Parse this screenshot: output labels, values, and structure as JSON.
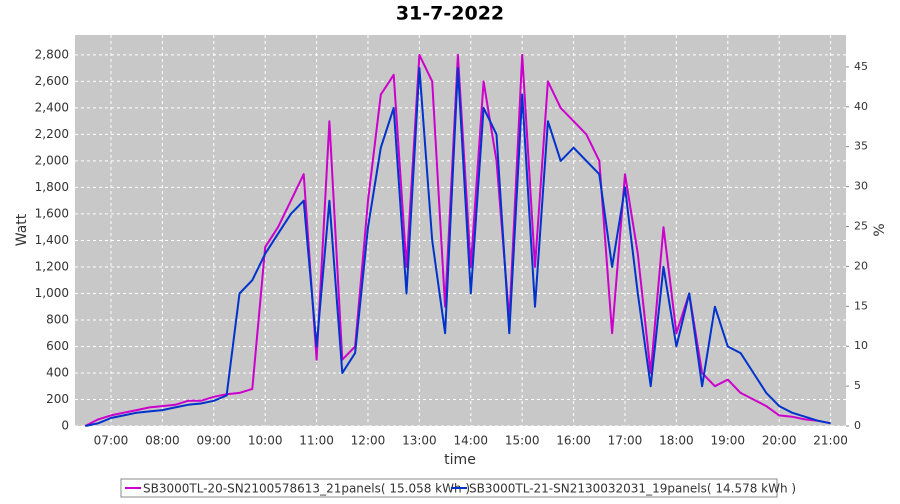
{
  "chart_data": {
    "type": "line",
    "title": "31-7-2022",
    "x_label": "time",
    "y_label": "Watt",
    "y2_label": "%",
    "x": [
      "06:30",
      "06:45",
      "07:00",
      "07:15",
      "07:30",
      "07:45",
      "08:00",
      "08:15",
      "08:30",
      "08:45",
      "09:00",
      "09:15",
      "09:30",
      "09:45",
      "10:00",
      "10:15",
      "10:30",
      "10:45",
      "11:00",
      "11:15",
      "11:30",
      "11:45",
      "12:00",
      "12:15",
      "12:30",
      "12:45",
      "13:00",
      "13:15",
      "13:30",
      "13:45",
      "14:00",
      "14:15",
      "14:30",
      "14:45",
      "15:00",
      "15:15",
      "15:30",
      "15:45",
      "16:00",
      "16:15",
      "16:30",
      "16:45",
      "17:00",
      "17:15",
      "17:30",
      "17:45",
      "18:00",
      "18:15",
      "18:30",
      "18:45",
      "19:00",
      "19:15",
      "19:30",
      "19:45",
      "20:00",
      "20:15",
      "20:30",
      "20:45",
      "21:00"
    ],
    "xlim": [
      "06:18",
      "21:18"
    ],
    "xticks": [
      "07:00",
      "08:00",
      "09:00",
      "10:00",
      "11:00",
      "12:00",
      "13:00",
      "14:00",
      "15:00",
      "16:00",
      "17:00",
      "18:00",
      "19:00",
      "20:00",
      "21:00"
    ],
    "ylim": [
      0,
      2950
    ],
    "yticks": [
      0,
      200,
      400,
      600,
      800,
      {
        "value": 1000,
        "label": "1,000"
      },
      {
        "value": 1200,
        "label": "1,200"
      },
      {
        "value": 1400,
        "label": "1,400"
      },
      {
        "value": 1600,
        "label": "1,600"
      },
      {
        "value": 1800,
        "label": "1,800"
      },
      {
        "value": 2000,
        "label": "2,000"
      },
      {
        "value": 2200,
        "label": "2,200"
      },
      {
        "value": 2400,
        "label": "2,400"
      },
      {
        "value": 2600,
        "label": "2,600"
      },
      {
        "value": 2800,
        "label": "2,800"
      }
    ],
    "y2lim": [
      0,
      49
    ],
    "y2ticks": [
      0,
      5,
      10,
      15,
      20,
      25,
      30,
      35,
      40,
      45
    ],
    "grid": true,
    "series": [
      {
        "name": "SB3000TL-20-SN2100578613_21panels( 15.058 kWh )",
        "color": "#cc00cc",
        "values": [
          0,
          50,
          80,
          100,
          120,
          140,
          150,
          160,
          190,
          190,
          220,
          240,
          250,
          280,
          1350,
          1500,
          1700,
          1900,
          500,
          2300,
          500,
          600,
          1700,
          2500,
          2650,
          1200,
          2800,
          2600,
          900,
          2800,
          1200,
          2600,
          2000,
          800,
          2800,
          1200,
          2600,
          2400,
          2300,
          2200,
          2000,
          700,
          1900,
          1300,
          400,
          1500,
          700,
          1000,
          400,
          300,
          350,
          250,
          200,
          150,
          80,
          70,
          50,
          40,
          20
        ]
      },
      {
        "name": "SB3000TL-21-SN2130032031_19panels( 14.578 kWh )",
        "color": "#0033cc",
        "values": [
          0,
          20,
          60,
          80,
          100,
          110,
          120,
          140,
          160,
          170,
          190,
          230,
          1000,
          1100,
          1300,
          1450,
          1600,
          1700,
          600,
          1700,
          400,
          550,
          1500,
          2100,
          2400,
          1000,
          2700,
          1400,
          700,
          2700,
          1000,
          2400,
          2200,
          700,
          2500,
          900,
          2300,
          2000,
          2100,
          2000,
          1900,
          1200,
          1800,
          1000,
          300,
          1200,
          600,
          1000,
          300,
          900,
          600,
          550,
          400,
          250,
          150,
          100,
          70,
          40,
          20
        ]
      }
    ]
  }
}
